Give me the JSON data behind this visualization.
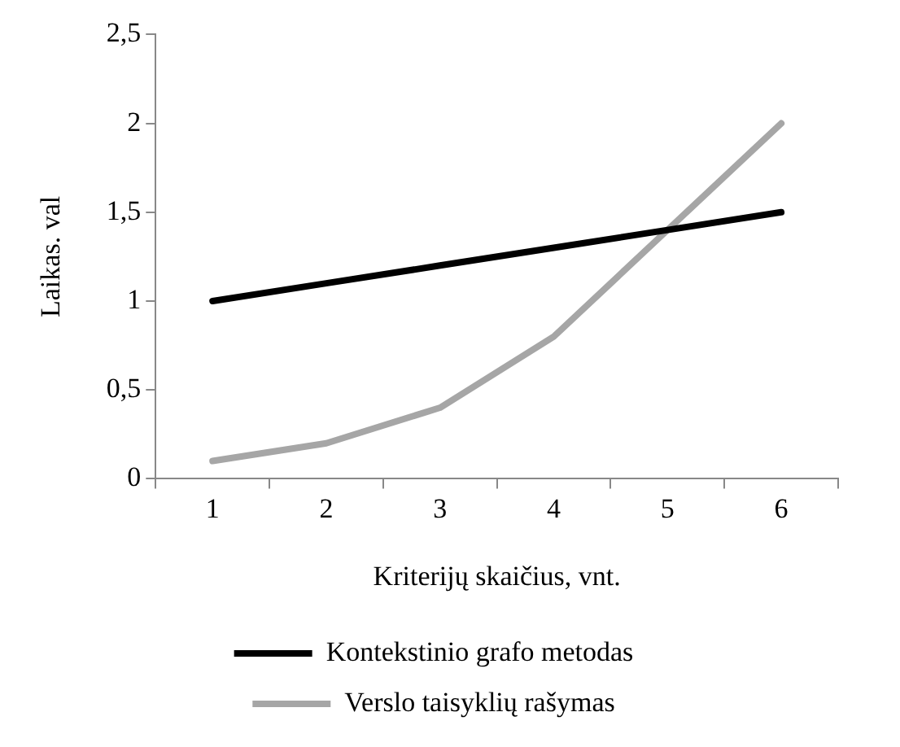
{
  "chart_data": {
    "type": "line",
    "xlabel": "Kriterijų skaičius, vnt.",
    "ylabel": "Laikas. val",
    "categories": [
      "1",
      "2",
      "3",
      "4",
      "5",
      "6"
    ],
    "series": [
      {
        "name": "Kontekstinio grafo metodas",
        "color": "#000000",
        "values": [
          1,
          1.1,
          1.2,
          1.3,
          1.4,
          1.5
        ]
      },
      {
        "name": "Verslo taisyklių rašymas",
        "color": "#a6a6a6",
        "values": [
          0.1,
          0.2,
          0.4,
          0.8,
          1.4,
          2
        ]
      }
    ],
    "ylim": [
      0,
      2.5
    ],
    "yticks": [
      0,
      {
        "value": 0.5,
        "label": "0,5"
      },
      1,
      {
        "value": 1.5,
        "label": "1,5"
      },
      2,
      {
        "value": 2.5,
        "label": "2,5"
      }
    ],
    "grid": false,
    "legend": "bottom",
    "marker": "none",
    "line_style": "solid"
  }
}
